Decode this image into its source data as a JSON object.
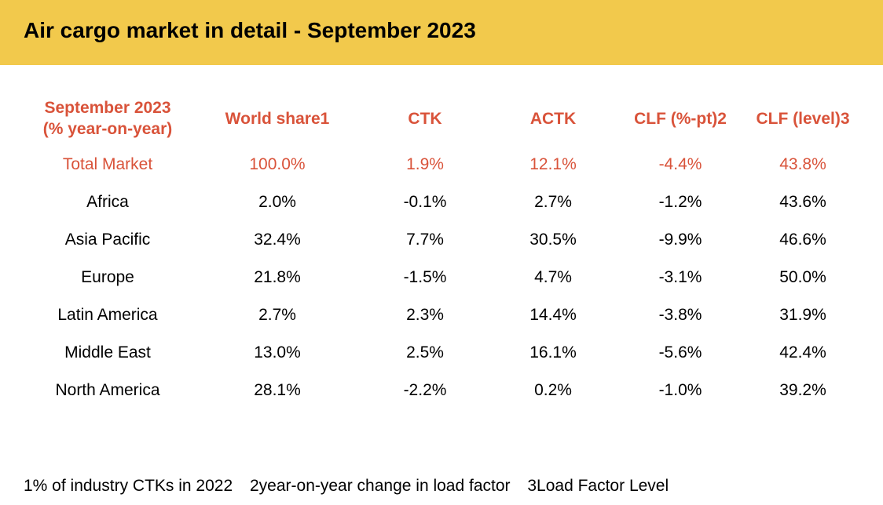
{
  "colors": {
    "banner_bg": "#f2c94c",
    "accent_red": "#d9533a",
    "text": "#000000"
  },
  "title": "Air cargo market in detail - September 2023",
  "table": {
    "header": {
      "region_line1": "September 2023",
      "region_line2": "(% year-on-year)",
      "world_share": "World share1",
      "ctk": "CTK",
      "actk": "ACTK",
      "clf_pt": "CLF (%-pt)2",
      "clf_level": "CLF (level)3"
    },
    "rows": [
      {
        "region": "Total Market",
        "world_share": "100.0%",
        "ctk": "1.9%",
        "actk": "12.1%",
        "clf_pt": "-4.4%",
        "clf_level": "43.8%"
      },
      {
        "region": "Africa",
        "world_share": "2.0%",
        "ctk": "-0.1%",
        "actk": "2.7%",
        "clf_pt": "-1.2%",
        "clf_level": "43.6%"
      },
      {
        "region": "Asia Pacific",
        "world_share": "32.4%",
        "ctk": "7.7%",
        "actk": "30.5%",
        "clf_pt": "-9.9%",
        "clf_level": "46.6%"
      },
      {
        "region": "Europe",
        "world_share": "21.8%",
        "ctk": "-1.5%",
        "actk": "4.7%",
        "clf_pt": "-3.1%",
        "clf_level": "50.0%"
      },
      {
        "region": "Latin America",
        "world_share": "2.7%",
        "ctk": "2.3%",
        "actk": "14.4%",
        "clf_pt": "-3.8%",
        "clf_level": "31.9%"
      },
      {
        "region": "Middle East",
        "world_share": "13.0%",
        "ctk": "2.5%",
        "actk": "16.1%",
        "clf_pt": "-5.6%",
        "clf_level": "42.4%"
      },
      {
        "region": "North America",
        "world_share": "28.1%",
        "ctk": "-2.2%",
        "actk": "0.2%",
        "clf_pt": "-1.0%",
        "clf_level": "39.2%"
      }
    ]
  },
  "footnotes": [
    "1% of industry CTKs in 2022",
    "2year-on-year change in load factor",
    "3Load Factor Level"
  ]
}
